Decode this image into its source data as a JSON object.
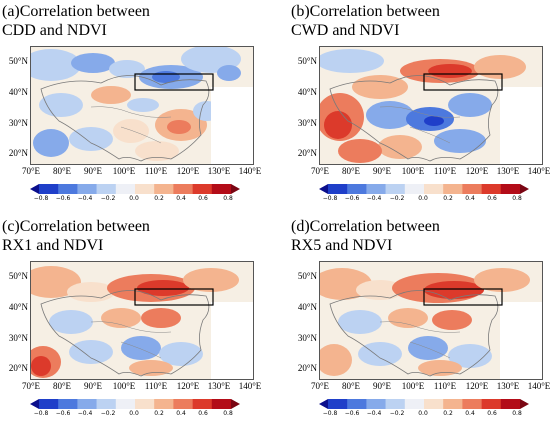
{
  "panels": [
    {
      "id": "a",
      "title_line1": "(a)Correlation between",
      "title_line2": "CDD and NDVI"
    },
    {
      "id": "b",
      "title_line1": "(b)Correlation between",
      "title_line2": "CWD and NDVI"
    },
    {
      "id": "c",
      "title_line1": "(c)Correlation between",
      "title_line2": "RX1 and NDVI"
    },
    {
      "id": "d",
      "title_line1": "(d)Correlation between",
      "title_line2": "RX5 and NDVI"
    }
  ],
  "lat_labels": [
    "50°N",
    "40°N",
    "30°N",
    "20°N"
  ],
  "lon_labels": [
    "70°E",
    "80°E",
    "90°E",
    "100°E",
    "110°E",
    "120°E",
    "130°E",
    "140°E"
  ],
  "colorbar": {
    "ticks": [
      "−0.8",
      "−0.6",
      "−0.4",
      "−0.2",
      "0.0",
      "0.2",
      "0.4",
      "0.6",
      "0.8"
    ],
    "colors": [
      "#0b0f8c",
      "#1f3fc9",
      "#4d79de",
      "#86aaea",
      "#bcd2f2",
      "#eef0f6",
      "#f8e0cc",
      "#f4b48f",
      "#ec7c5d",
      "#dc3a2b",
      "#b30c18",
      "#7a0613"
    ]
  },
  "study_region_box": "black rectangle over northern China"
}
